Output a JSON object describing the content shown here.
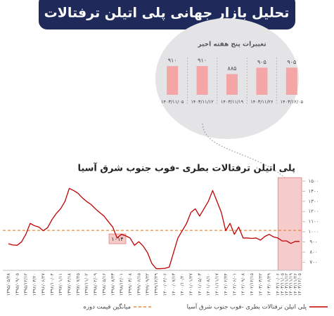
{
  "header": {
    "title": "تحلیل بازار جهانی پلی اتیلن ترفتالات"
  },
  "chart_data": [
    {
      "type": "line",
      "title": "پلی اتیلن ترفتالات بطری -فوب جنوب شرق آسیا",
      "categories": [
        "۱۳۹۵/۰۵/۲۸",
        null,
        "۱۳۹۵/۰۹/۰۵",
        null,
        "۱۳۹۵/۱۲/۱۲",
        null,
        "۱۳۹۶/۰۳/۲۰",
        null,
        "۱۳۹۶/۰۶/۲۷",
        null,
        "۱۳۹۶/۱۰/۰۴",
        null,
        "۱۳۹۷/۰۱/۱۱",
        null,
        "۱۳۹۷/۰۴/۱۸",
        null,
        "۱۳۹۷/۰۷/۲۵",
        null,
        "۱۳۹۷/۱۱/۰۲",
        null,
        "۱۳۹۸/۰۲/۰۹",
        null,
        "۱۳۹۸/۰۵/۱۶",
        null,
        "۱۳۹۸/۰۸/۲۳",
        null,
        "۱۳۹۸/۱۲/۰۱",
        null,
        "۱۳۹۹/۰۳/۰۸",
        null,
        "۱۳۹۹/۰۶/۱۵",
        null,
        "۱۳۹۹/۰۹/۲۲",
        null,
        "۱۳۹۹/۱۲/۲۹",
        null,
        "۱۴۰۰/۰۴/۰۶",
        null,
        "۱۴۰۰/۰۷/۱۳",
        null,
        "۱۴۰۰/۱۰/۲۰",
        null,
        "۱۴۰۱/۰۱/۲۷",
        null,
        "۱۴۰۱/۰۵/۰۳",
        null,
        "۱۴۰۱/۰۸/۱۰",
        null,
        "۱۴۰۱/۱۱/۱۷",
        null,
        "۱۴۰۲/۰۲/۲۴",
        null,
        "۱۴۰۲/۰۶/۰۱",
        null,
        "۱۴۰۲/۰۹/۰۸",
        null,
        "۱۴۰۲/۱۲/۱۵",
        null,
        "۱۴۰۳/۰۳/۲۲",
        null,
        "۱۴۰۳/۰۶/۲۹",
        null,
        "۱۴۰۳/۱۰/۰۶",
        "۱۴۰۳/۱۱/۰۵",
        "۱۴۰۳/۱۱/۱۲",
        "۱۴۰۳/۱۱/۱۹",
        "۱۴۰۳/۱۱/۲۶",
        "۱۴۰۳/۱۲/۰۵"
      ],
      "series": [
        {
          "name": "پلی اتیلن ترفتالات بطری -فوب جنوب شرق آسیا",
          "color": "#c00000",
          "values": [
            882,
            870,
            867,
            900,
            975,
            1083,
            1060,
            1047,
            1011,
            1040,
            1119,
            1180,
            1227,
            1299,
            1428,
            1407,
            1380,
            1335,
            1299,
            1270,
            1227,
            1190,
            1155,
            1100,
            1047,
            939,
            975,
            960,
            939,
            867,
            903,
            860,
            795,
            688,
            637,
            637,
            640,
            652,
            795,
            939,
            1011,
            1083,
            1191,
            1227,
            1155,
            1227,
            1299,
            1407,
            1299,
            1191,
            1011,
            1083,
            975,
            1047,
            939,
            939,
            935,
            939,
            918,
            954,
            975,
            950,
            939,
            910,
            910,
            885,
            905,
            905
          ]
        }
      ],
      "average": {
        "name": "میانگین قیمت دوره",
        "value": 1014,
        "label": "۱۰۱۴",
        "color": "#e8883a"
      },
      "ylim": [
        620,
        1520
      ],
      "yticks": [
        {
          "value": 700,
          "label": "۷۰۰"
        },
        {
          "value": 800,
          "label": "۸۰۰"
        },
        {
          "value": 900,
          "label": "۹۰۰"
        },
        {
          "value": 1000,
          "label": "۱۰۰۰"
        },
        {
          "value": 1100,
          "label": "۱۱۰۰"
        },
        {
          "value": 1200,
          "label": "۱۲۰۰"
        },
        {
          "value": 1300,
          "label": "۱۳۰۰"
        },
        {
          "value": 1400,
          "label": "۱۴۰۰"
        },
        {
          "value": 1500,
          "label": "۱۵۰۰"
        }
      ]
    },
    {
      "type": "bar",
      "title": "تغییرات پنج هفته اخیر",
      "categories": [
        "۱۴۰۳/۱۱/۰۵",
        "۱۴۰۳/۱۱/۱۲",
        "۱۴۰۳/۱۱/۱۹",
        "۱۴۰۳/۱۱/۲۶",
        "۱۴۰۳/۱۲/۰۵"
      ],
      "values": [
        910,
        910,
        885,
        905,
        905
      ],
      "value_labels": [
        "۹۱۰",
        "۹۱۰",
        "۸۸۵",
        "۹۰۵",
        "۹۰۵"
      ],
      "color": "#f4a6a6",
      "ylim": [
        820,
        930
      ]
    }
  ]
}
